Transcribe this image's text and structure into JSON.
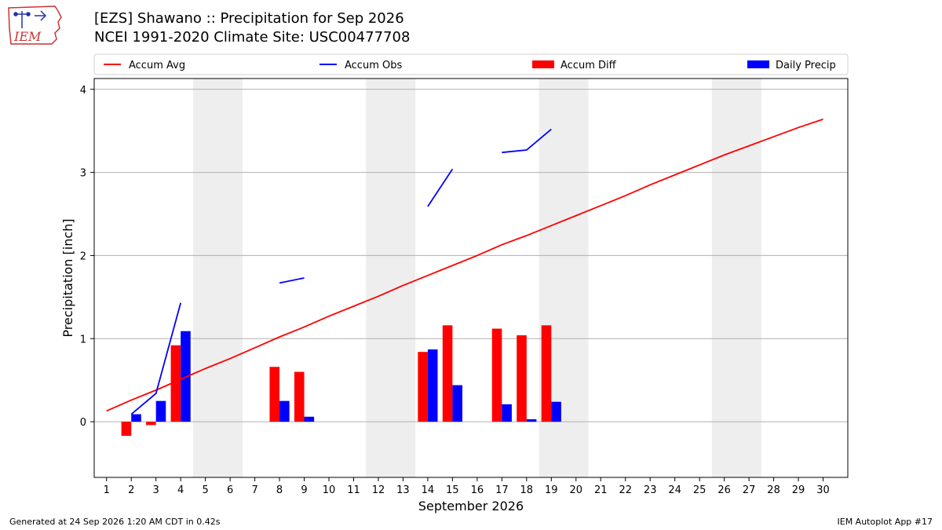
{
  "header": {
    "title_line1": "[EZS] Shawano :: Precipitation for Sep 2026",
    "title_line2": "NCEI 1991-2020 Climate Site: USC00477708",
    "logo_text": "IEM"
  },
  "footer": {
    "generated": "Generated at 24 Sep 2026 1:20 AM CDT in 0.42s",
    "app": "IEM Autoplot App #17"
  },
  "colors": {
    "avg": "#ff0000",
    "obs": "#0000ff",
    "diff": "#ff0000",
    "daily": "#0000ff",
    "weekend_shade": "#eeeeee",
    "grid": "#b0b0b0",
    "logo_red": "#cc3333",
    "logo_blue": "#2233aa"
  },
  "chart_data": {
    "type": "bar",
    "xlabel": "September 2026",
    "ylabel": "Precipitation [inch]",
    "xlim": [
      0.5,
      31
    ],
    "ylim": [
      -0.67,
      4.13
    ],
    "yticks": [
      0,
      1,
      2,
      3,
      4
    ],
    "xticks": [
      1,
      2,
      3,
      4,
      5,
      6,
      7,
      8,
      9,
      10,
      11,
      12,
      13,
      14,
      15,
      16,
      17,
      18,
      19,
      20,
      21,
      22,
      23,
      24,
      25,
      26,
      27,
      28,
      29,
      30
    ],
    "grid": "horizontal",
    "weekend_shading": [
      [
        5,
        6
      ],
      [
        12,
        13
      ],
      [
        19,
        20
      ],
      [
        26,
        27
      ]
    ],
    "legend": {
      "placement": "top, outside plot",
      "entries": [
        {
          "label": "Accum Avg",
          "kind": "line",
          "color": "#ff0000"
        },
        {
          "label": "Accum Obs",
          "kind": "line",
          "color": "#0000ff"
        },
        {
          "label": "Accum Diff",
          "kind": "bar",
          "color": "#ff0000"
        },
        {
          "label": "Daily Precip",
          "kind": "bar",
          "color": "#0000ff"
        }
      ]
    },
    "series": [
      {
        "name": "Accum Avg",
        "type": "line",
        "x": [
          1,
          2,
          3,
          4,
          5,
          6,
          7,
          8,
          9,
          10,
          11,
          12,
          13,
          14,
          15,
          16,
          17,
          18,
          19,
          20,
          21,
          22,
          23,
          24,
          25,
          26,
          27,
          28,
          29,
          30
        ],
        "values": [
          0.13,
          0.26,
          0.38,
          0.51,
          0.64,
          0.76,
          0.89,
          1.02,
          1.14,
          1.27,
          1.39,
          1.51,
          1.64,
          1.76,
          1.88,
          2.0,
          2.13,
          2.24,
          2.36,
          2.48,
          2.6,
          2.72,
          2.85,
          2.97,
          3.09,
          3.21,
          3.32,
          3.43,
          3.54,
          3.64
        ]
      },
      {
        "name": "Accum Obs",
        "type": "line",
        "segments": [
          {
            "x": [
              2,
              3,
              4
            ],
            "values": [
              0.09,
              0.34,
              1.43
            ]
          },
          {
            "x": [
              8,
              9
            ],
            "values": [
              1.67,
              1.73
            ]
          },
          {
            "x": [
              14,
              15
            ],
            "values": [
              2.59,
              3.04
            ]
          },
          {
            "x": [
              17,
              18,
              19
            ],
            "values": [
              3.24,
              3.27,
              3.52
            ]
          }
        ]
      },
      {
        "name": "Accum Diff",
        "type": "bar",
        "x": [
          2,
          3,
          4,
          8,
          9,
          14,
          15,
          17,
          18,
          19
        ],
        "values": [
          -0.17,
          -0.04,
          0.92,
          0.66,
          0.6,
          0.84,
          1.16,
          1.12,
          1.04,
          1.16
        ]
      },
      {
        "name": "Daily Precip",
        "type": "bar",
        "x": [
          2,
          3,
          4,
          8,
          9,
          14,
          15,
          17,
          18,
          19
        ],
        "values": [
          0.09,
          0.25,
          1.09,
          0.25,
          0.06,
          0.87,
          0.44,
          0.21,
          0.03,
          0.24
        ]
      }
    ]
  }
}
